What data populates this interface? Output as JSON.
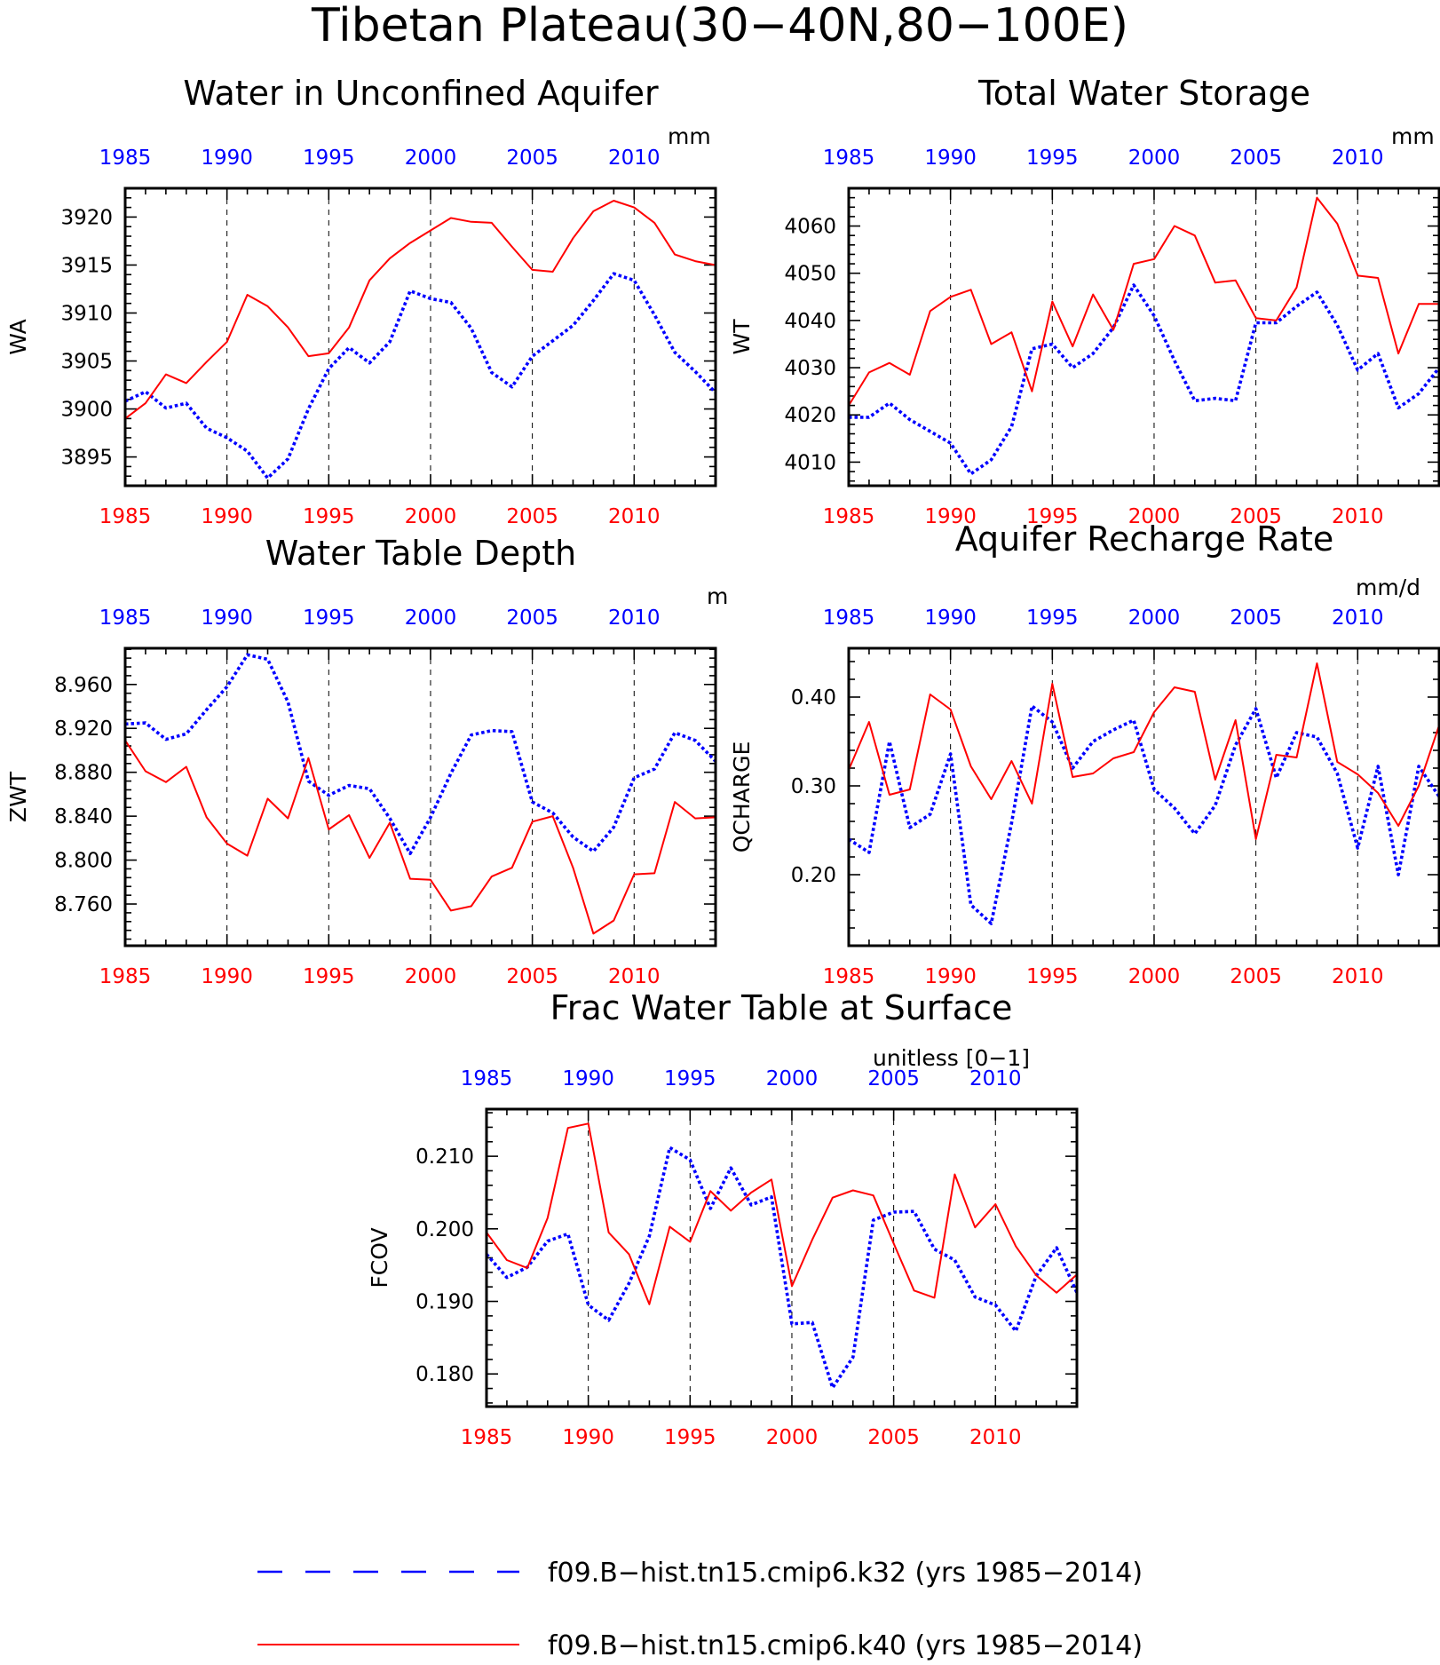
{
  "figure": {
    "title": "Tibetan Plateau(30−40N,80−100E)",
    "colors": {
      "k32": "#0000ff",
      "k40": "#ff0000"
    },
    "legend": [
      {
        "label": "f09.B−hist.tn15.cmip6.k32 (yrs 1985−2014)",
        "color": "#0000ff",
        "style": "dashed"
      },
      {
        "label": "f09.B−hist.tn15.cmip6.k40 (yrs 1985−2014)",
        "color": "#ff0000",
        "style": "solid"
      }
    ]
  },
  "chart_data": [
    {
      "type": "line",
      "title": "Water in Unconfined Aquifer",
      "ylabel": "WA",
      "units": "mm",
      "xlim": [
        1985,
        2014
      ],
      "ylim": [
        3892,
        3923
      ],
      "yticks": [
        3895,
        3900,
        3905,
        3910,
        3915,
        3920
      ],
      "ytick_labels": [
        "3895",
        "3900",
        "3905",
        "3910",
        "3915",
        "3920"
      ],
      "xticks": [
        1985,
        1990,
        1995,
        2000,
        2005,
        2010
      ],
      "xtick_labels": [
        "1985",
        "1990",
        "1995",
        "2000",
        "2005",
        "2010"
      ],
      "x": [
        1985,
        1986,
        1987,
        1988,
        1989,
        1990,
        1991,
        1992,
        1993,
        1994,
        1995,
        1996,
        1997,
        1998,
        1999,
        2000,
        2001,
        2002,
        2003,
        2004,
        2005,
        2006,
        2007,
        2008,
        2009,
        2010,
        2011,
        2012,
        2013,
        2014
      ],
      "series": [
        {
          "name": "f09.B−hist.tn15.cmip6.k32",
          "color": "#0000ff",
          "style": "dotted",
          "values": [
            3900.8,
            3901.8,
            3900.1,
            3900.6,
            3898.0,
            3897.0,
            3895.6,
            3892.8,
            3894.8,
            3900.0,
            3904.2,
            3906.4,
            3904.8,
            3907.0,
            3912.3,
            3911.5,
            3911.1,
            3908.4,
            3903.8,
            3902.3,
            3905.5,
            3907.1,
            3908.7,
            3911.3,
            3914.1,
            3913.4,
            3909.8,
            3905.9,
            3903.9,
            3901.7
          ]
        },
        {
          "name": "f09.B−hist.tn15.cmip6.k40",
          "color": "#ff0000",
          "style": "solid",
          "values": [
            3899.0,
            3900.6,
            3903.6,
            3902.7,
            3904.9,
            3907.0,
            3911.9,
            3910.7,
            3908.5,
            3905.5,
            3905.8,
            3908.5,
            3913.4,
            3915.7,
            3917.3,
            3918.6,
            3919.9,
            3919.5,
            3919.4,
            3916.9,
            3914.5,
            3914.3,
            3917.8,
            3920.6,
            3921.7,
            3921.0,
            3919.4,
            3916.1,
            3915.4,
            3915.0
          ]
        }
      ]
    },
    {
      "type": "line",
      "title": "Total Water Storage",
      "ylabel": "WT",
      "units": "mm",
      "xlim": [
        1985,
        2014
      ],
      "ylim": [
        4005,
        4068
      ],
      "yticks": [
        4010,
        4020,
        4030,
        4040,
        4050,
        4060
      ],
      "ytick_labels": [
        "4010",
        "4020",
        "4030",
        "4040",
        "4050",
        "4060"
      ],
      "xticks": [
        1985,
        1990,
        1995,
        2000,
        2005,
        2010
      ],
      "xtick_labels": [
        "1985",
        "1990",
        "1995",
        "2000",
        "2005",
        "2010"
      ],
      "x": [
        1985,
        1986,
        1987,
        1988,
        1989,
        1990,
        1991,
        1992,
        1993,
        1994,
        1995,
        1996,
        1997,
        1998,
        1999,
        2000,
        2001,
        2002,
        2003,
        2004,
        2005,
        2006,
        2007,
        2008,
        2009,
        2010,
        2011,
        2012,
        2013,
        2014
      ],
      "series": [
        {
          "name": "f09.B−hist.tn15.cmip6.k32",
          "color": "#0000ff",
          "style": "dotted",
          "values": [
            4019.5,
            4019.5,
            4022.5,
            4019.0,
            4016.5,
            4014.0,
            4007.5,
            4010.5,
            4017.5,
            4034.0,
            4035.0,
            4030.0,
            4033.0,
            4038.5,
            4047.5,
            4041.0,
            4031.5,
            4023.0,
            4023.5,
            4023.0,
            4039.5,
            4039.5,
            4043.0,
            4046.0,
            4039.0,
            4029.5,
            4033.0,
            4021.5,
            4024.5,
            4030.0
          ]
        },
        {
          "name": "f09.B−hist.tn15.cmip6.k40",
          "color": "#ff0000",
          "style": "solid",
          "values": [
            4022.0,
            4029.0,
            4031.0,
            4028.5,
            4042.0,
            4045.0,
            4046.5,
            4035.0,
            4037.5,
            4025.0,
            4044.0,
            4034.5,
            4045.5,
            4038.0,
            4052.0,
            4053.0,
            4060.0,
            4058.0,
            4048.0,
            4048.5,
            4040.5,
            4040.0,
            4047.0,
            4066.0,
            4060.5,
            4049.5,
            4049.0,
            4033.0,
            4043.5,
            4043.5
          ]
        }
      ]
    },
    {
      "type": "line",
      "title": "Water Table Depth",
      "ylabel": "ZWT",
      "units": "m",
      "xlim": [
        1985,
        2014
      ],
      "ylim": [
        8.722,
        8.993
      ],
      "yticks": [
        8.76,
        8.8,
        8.84,
        8.88,
        8.92,
        8.96
      ],
      "ytick_labels": [
        "8.760",
        "8.800",
        "8.840",
        "8.880",
        "8.920",
        "8.960"
      ],
      "xticks": [
        1985,
        1990,
        1995,
        2000,
        2005,
        2010
      ],
      "xtick_labels": [
        "1985",
        "1990",
        "1995",
        "2000",
        "2005",
        "2010"
      ],
      "x": [
        1985,
        1986,
        1987,
        1988,
        1989,
        1990,
        1991,
        1992,
        1993,
        1994,
        1995,
        1996,
        1997,
        1998,
        1999,
        2000,
        2001,
        2002,
        2003,
        2004,
        2005,
        2006,
        2007,
        2008,
        2009,
        2010,
        2011,
        2012,
        2013,
        2014
      ],
      "series": [
        {
          "name": "f09.B−hist.tn15.cmip6.k32",
          "color": "#0000ff",
          "style": "dotted",
          "values": [
            8.924,
            8.925,
            8.91,
            8.915,
            8.937,
            8.958,
            8.987,
            8.983,
            8.944,
            8.872,
            8.859,
            8.868,
            8.865,
            8.838,
            8.806,
            8.839,
            8.879,
            8.914,
            8.918,
            8.917,
            8.853,
            8.843,
            8.821,
            8.808,
            8.83,
            8.875,
            8.883,
            8.916,
            8.909,
            8.89
          ]
        },
        {
          "name": "f09.B−hist.tn15.cmip6.k40",
          "color": "#ff0000",
          "style": "solid",
          "values": [
            8.909,
            8.881,
            8.871,
            8.885,
            8.839,
            8.815,
            8.804,
            8.856,
            8.838,
            8.893,
            8.828,
            8.841,
            8.802,
            8.834,
            8.783,
            8.782,
            8.754,
            8.758,
            8.785,
            8.793,
            8.835,
            8.84,
            8.793,
            8.733,
            8.745,
            8.787,
            8.788,
            8.853,
            8.838,
            8.839
          ]
        }
      ]
    },
    {
      "type": "line",
      "title": "Aquifer Recharge Rate",
      "ylabel": "QCHARGE",
      "units": "mm/d",
      "xlim": [
        1985,
        2014
      ],
      "ylim": [
        0.12,
        0.455
      ],
      "yticks": [
        0.2,
        0.3,
        0.4
      ],
      "ytick_labels": [
        "0.20",
        "0.30",
        "0.40"
      ],
      "xticks": [
        1985,
        1990,
        1995,
        2000,
        2005,
        2010
      ],
      "xtick_labels": [
        "1985",
        "1990",
        "1995",
        "2000",
        "2005",
        "2010"
      ],
      "x": [
        1985,
        1986,
        1987,
        1988,
        1989,
        1990,
        1991,
        1992,
        1993,
        1994,
        1995,
        1996,
        1997,
        1998,
        1999,
        2000,
        2001,
        2002,
        2003,
        2004,
        2005,
        2006,
        2007,
        2008,
        2009,
        2010,
        2011,
        2012,
        2013,
        2014
      ],
      "series": [
        {
          "name": "f09.B−hist.tn15.cmip6.k32",
          "color": "#0000ff",
          "style": "dotted",
          "values": [
            0.24,
            0.225,
            0.35,
            0.253,
            0.268,
            0.336,
            0.166,
            0.145,
            0.258,
            0.39,
            0.372,
            0.32,
            0.35,
            0.363,
            0.374,
            0.296,
            0.275,
            0.246,
            0.278,
            0.346,
            0.387,
            0.309,
            0.36,
            0.355,
            0.314,
            0.23,
            0.322,
            0.2,
            0.322,
            0.288
          ]
        },
        {
          "name": "f09.B−hist.tn15.cmip6.k40",
          "color": "#ff0000",
          "style": "solid",
          "values": [
            0.318,
            0.372,
            0.29,
            0.296,
            0.403,
            0.386,
            0.322,
            0.285,
            0.328,
            0.28,
            0.415,
            0.31,
            0.314,
            0.331,
            0.338,
            0.383,
            0.411,
            0.406,
            0.307,
            0.374,
            0.24,
            0.335,
            0.332,
            0.438,
            0.327,
            0.313,
            0.292,
            0.255,
            0.3,
            0.368
          ]
        }
      ]
    },
    {
      "type": "line",
      "title": "Frac Water Table at Surface",
      "ylabel": "FCOV",
      "units": "unitless [0−1]",
      "xlim": [
        1985,
        2014
      ],
      "ylim": [
        0.1755,
        0.2165
      ],
      "yticks": [
        0.18,
        0.19,
        0.2,
        0.21
      ],
      "ytick_labels": [
        "0.180",
        "0.190",
        "0.200",
        "0.210"
      ],
      "xticks": [
        1985,
        1990,
        1995,
        2000,
        2005,
        2010
      ],
      "xtick_labels": [
        "1985",
        "1990",
        "1995",
        "2000",
        "2005",
        "2010"
      ],
      "x": [
        1985,
        1986,
        1987,
        1988,
        1989,
        1990,
        1991,
        1992,
        1993,
        1994,
        1995,
        1996,
        1997,
        1998,
        1999,
        2000,
        2001,
        2002,
        2003,
        2004,
        2005,
        2006,
        2007,
        2008,
        2009,
        2010,
        2011,
        2012,
        2013,
        2014
      ],
      "series": [
        {
          "name": "f09.B−hist.tn15.cmip6.k32",
          "color": "#0000ff",
          "style": "dotted",
          "values": [
            0.1965,
            0.1933,
            0.1947,
            0.1983,
            0.1993,
            0.1895,
            0.1874,
            0.1925,
            0.199,
            0.2112,
            0.2095,
            0.2028,
            0.2084,
            0.2033,
            0.2044,
            0.1869,
            0.1871,
            0.1781,
            0.1823,
            0.2012,
            0.2023,
            0.2024,
            0.1972,
            0.1957,
            0.1906,
            0.1895,
            0.1859,
            0.1935,
            0.1974,
            0.1912
          ]
        },
        {
          "name": "f09.B−hist.tn15.cmip6.k40",
          "color": "#ff0000",
          "style": "solid",
          "values": [
            0.1995,
            0.1957,
            0.1946,
            0.2015,
            0.2139,
            0.2145,
            0.1995,
            0.1965,
            0.1896,
            0.2003,
            0.1982,
            0.2052,
            0.2025,
            0.205,
            0.2068,
            0.1921,
            0.1985,
            0.2043,
            0.2053,
            0.2046,
            0.198,
            0.1915,
            0.1905,
            0.2075,
            0.2002,
            0.2034,
            0.1976,
            0.1936,
            0.1912,
            0.1937
          ]
        }
      ]
    }
  ]
}
